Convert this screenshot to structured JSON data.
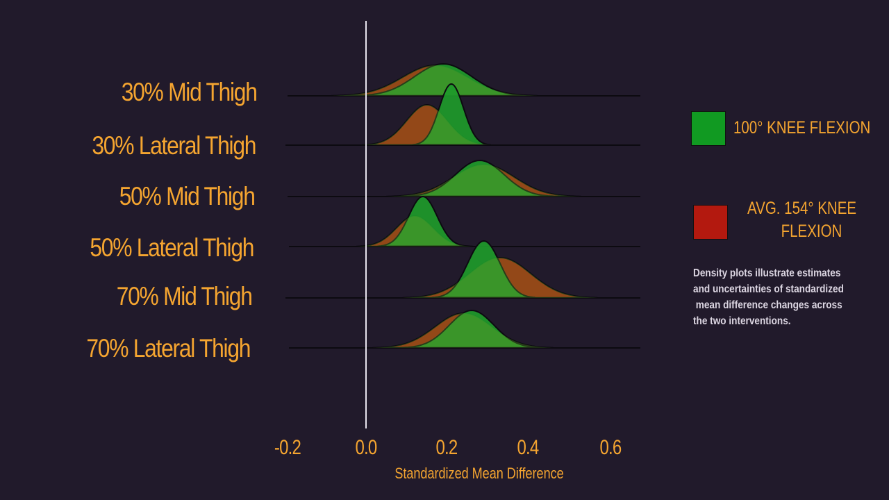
{
  "chart_data": {
    "type": "ridgeline-density",
    "title": "",
    "xlabel": "Standardized Mean Difference",
    "ylabel": "",
    "xlim": [
      -0.2,
      0.7
    ],
    "x_ticks": [
      "-0.2",
      "0.0",
      "0.2",
      "0.4",
      "0.6"
    ],
    "reference_line": 0.0,
    "grid": false,
    "legend_position": "right",
    "categories": [
      "30% Mid Thigh",
      "30% Lateral Thigh",
      "50% Mid Thigh",
      "50% Lateral Thigh",
      "70% Mid Thigh",
      "70% Lateral Thigh"
    ],
    "series": [
      {
        "name": "100° KNEE FLEXION",
        "color": "#1e9a2a",
        "mean": [
          0.19,
          0.21,
          0.28,
          0.14,
          0.29,
          0.26
        ],
        "sd": [
          0.07,
          0.03,
          0.06,
          0.035,
          0.04,
          0.055
        ]
      },
      {
        "name": "AVG. 154° KNEE FLEXION",
        "color": "#b3190f",
        "mean": [
          0.17,
          0.15,
          0.29,
          0.12,
          0.33,
          0.24
        ],
        "sd": [
          0.08,
          0.05,
          0.075,
          0.045,
          0.075,
          0.07
        ]
      }
    ]
  },
  "labels": {
    "rows": [
      "30% Mid Thigh",
      "30% Lateral Thigh",
      "50% Mid Thigh",
      "50% Lateral Thigh",
      "70% Mid Thigh",
      "70% Lateral Thigh"
    ],
    "ticks": [
      "-0.2",
      "0.0",
      "0.2",
      "0.4",
      "0.6"
    ],
    "xlabel": "Standardized Mean Difference"
  },
  "legend": {
    "green_label": "100° KNEE FLEXION",
    "red_line1": "AVG. 154° KNEE",
    "red_line2": "FLEXION",
    "green_color": "#119a22",
    "red_color": "#b3190f"
  },
  "note": {
    "line1": "Density plots illustrate estimates",
    "line2": "and uncertainties of standardized",
    "line3": " mean difference changes across",
    "line4": "the two interventions."
  }
}
